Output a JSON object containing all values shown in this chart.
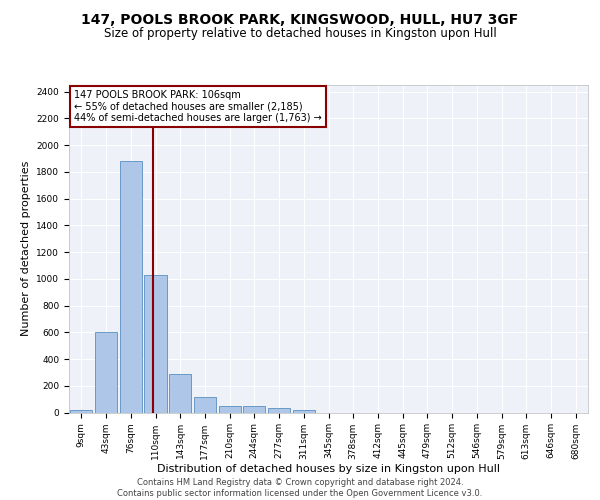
{
  "title1": "147, POOLS BROOK PARK, KINGSWOOD, HULL, HU7 3GF",
  "title2": "Size of property relative to detached houses in Kingston upon Hull",
  "xlabel": "Distribution of detached houses by size in Kingston upon Hull",
  "ylabel": "Number of detached properties",
  "footer1": "Contains HM Land Registry data © Crown copyright and database right 2024.",
  "footer2": "Contains public sector information licensed under the Open Government Licence v3.0.",
  "bin_labels": [
    "9sqm",
    "43sqm",
    "76sqm",
    "110sqm",
    "143sqm",
    "177sqm",
    "210sqm",
    "244sqm",
    "277sqm",
    "311sqm",
    "345sqm",
    "378sqm",
    "412sqm",
    "445sqm",
    "479sqm",
    "512sqm",
    "546sqm",
    "579sqm",
    "613sqm",
    "646sqm",
    "680sqm"
  ],
  "bar_values": [
    20,
    600,
    1880,
    1030,
    285,
    115,
    50,
    45,
    30,
    20,
    0,
    0,
    0,
    0,
    0,
    0,
    0,
    0,
    0,
    0,
    0
  ],
  "bar_color": "#aec6e8",
  "bar_edge_color": "#5a8fc0",
  "vline_color": "#8b0000",
  "annotation_text": "147 POOLS BROOK PARK: 106sqm\n← 55% of detached houses are smaller (2,185)\n44% of semi-detached houses are larger (1,763) →",
  "annotation_box_color": "#8b0000",
  "annotation_text_color": "black",
  "ylim": [
    0,
    2450
  ],
  "yticks": [
    0,
    200,
    400,
    600,
    800,
    1000,
    1200,
    1400,
    1600,
    1800,
    2000,
    2200,
    2400
  ],
  "background_color": "#eef2f8",
  "grid_color": "white",
  "property_sqm": 106,
  "title1_fontsize": 10,
  "title2_fontsize": 8.5,
  "ylabel_fontsize": 8,
  "xlabel_fontsize": 8,
  "footer_fontsize": 6,
  "tick_fontsize": 6.5,
  "annotation_fontsize": 7
}
